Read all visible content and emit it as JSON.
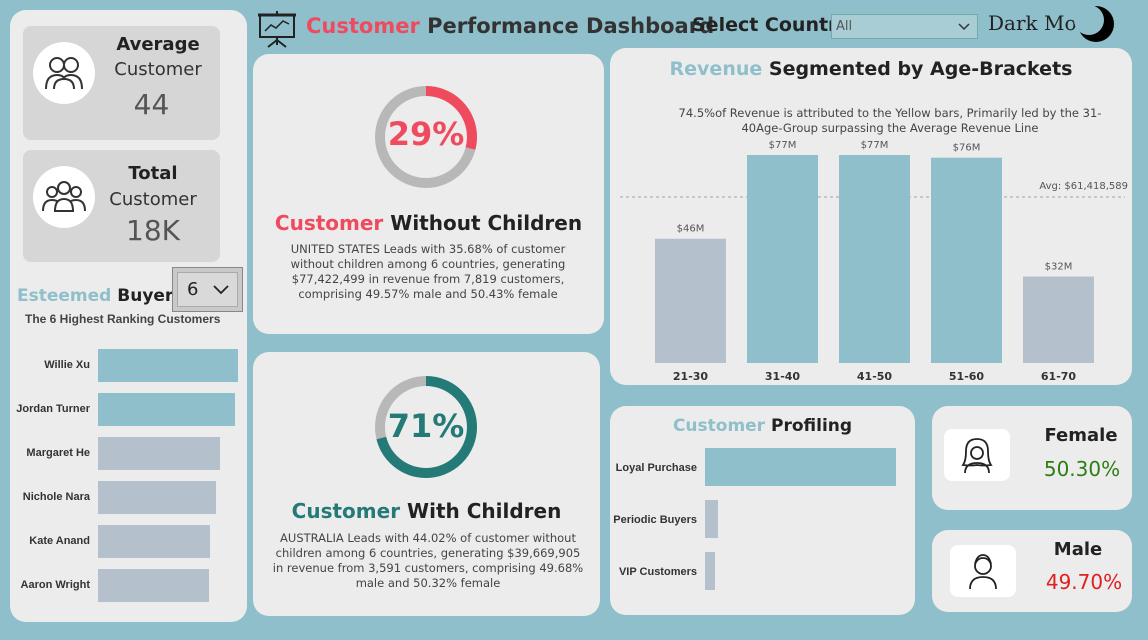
{
  "header": {
    "title_accent": "Customer",
    "title_rest": " Performance Dashboard",
    "select_label": "Select Country",
    "select_value": "All",
    "dark_mode_label": "Dark Mode"
  },
  "stats": {
    "average": {
      "title": "Average",
      "sub": "Customer",
      "value": "44"
    },
    "total": {
      "title": "Total",
      "sub": "Customer",
      "value": "18K"
    }
  },
  "esteemed": {
    "title_accent": "Esteemed",
    "title_rest": " Buyers",
    "dropdown_value": "6",
    "subtitle": "The 6 Highest Ranking Customers",
    "buyers": [
      {
        "name": "Willie Xu",
        "share": 1.0
      },
      {
        "name": "Jordan Turner",
        "share": 0.98
      },
      {
        "name": "Margaret He",
        "share": 0.87
      },
      {
        "name": "Nichole Nara",
        "share": 0.84
      },
      {
        "name": "Kate Anand",
        "share": 0.8
      },
      {
        "name": "Aaron Wright",
        "share": 0.79
      }
    ]
  },
  "without_children": {
    "percent": "29%",
    "percent_value": 29,
    "heading_accent": "Customer",
    "heading_rest": " Without Children",
    "text": "UNITED STATES Leads with 35.68% of customer without children among 6 countries, generating $77,422,499 in revenue from 7,819 customers, comprising 49.57% male and 50.43% female"
  },
  "with_children": {
    "percent": "71%",
    "percent_value": 71,
    "heading_accent": "Customer",
    "heading_rest": " With Children",
    "text": "AUSTRALIA Leads with 44.02% of customer without children among 6 countries, generating $39,669,905 in revenue from 3,591 customers, comprising 49.68% male and 50.32% female"
  },
  "revenue": {
    "title_accent": "Revenue",
    "title_rest": " Segmented by Age-Brackets",
    "note": "74.5%of Revenue is attributed to the Yellow bars, Primarily led by the 31-40Age-Group surpassing the Average Revenue Line",
    "avg_label": "Avg: $61,418,589"
  },
  "chart_data": {
    "type": "bar",
    "categories": [
      "21-30",
      "31-40",
      "41-50",
      "51-60",
      "61-70"
    ],
    "values": [
      46,
      77,
      77,
      76,
      32
    ],
    "data_labels": [
      "$46M",
      "$77M",
      "$77M",
      "$76M",
      "$32M"
    ],
    "average": 61.418589,
    "ylim": [
      0,
      82
    ],
    "colors": [
      "#b4c0cb",
      "#8fbfca",
      "#8fbfca",
      "#8fbfca",
      "#b4c0cb"
    ]
  },
  "profiling": {
    "title_accent": "Customer",
    "title_rest": " Profiling",
    "items": [
      {
        "label": "Loyal Purchase",
        "share": 1.0
      },
      {
        "label": "Periodic Buyers",
        "share": 0.07
      },
      {
        "label": "VIP Customers",
        "share": 0.05
      }
    ]
  },
  "gender": {
    "female": {
      "label": "Female",
      "value": "50.30%"
    },
    "male": {
      "label": "Male",
      "value": "49.70%"
    }
  },
  "colors": {
    "accent_red": "#f04a5f",
    "accent_teal": "#8fbfca",
    "accent_dark_teal": "#247a77",
    "female_green": "#2e7d14",
    "male_red": "#e0201f",
    "bar_grey": "#b4c0cb"
  }
}
